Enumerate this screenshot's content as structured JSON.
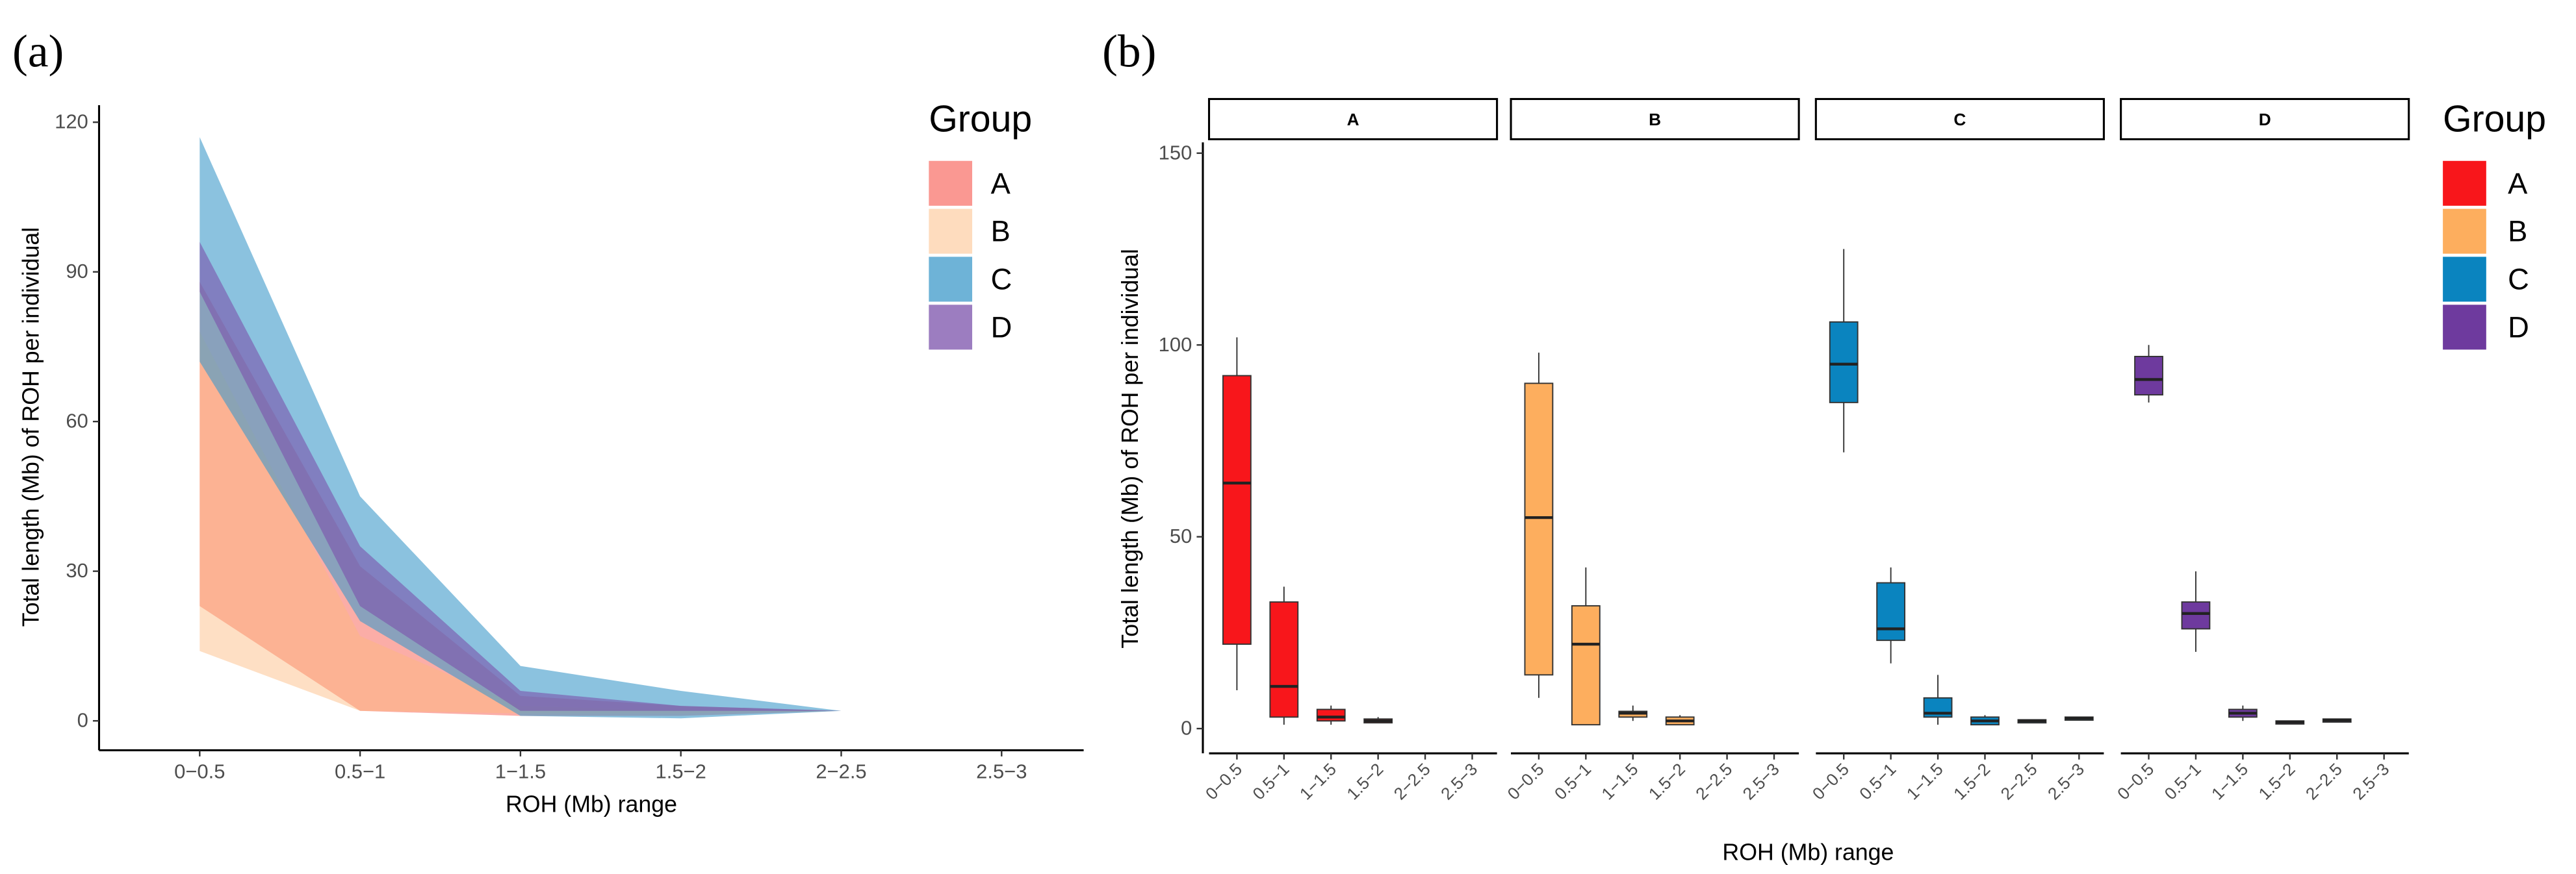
{
  "chart_data": [
    {
      "panel_label": "(a)",
      "type": "area",
      "xlabel": "ROH (Mb) range",
      "ylabel": "Total length (Mb) of ROH per individual",
      "categories": [
        "0−0.5",
        "0.5−1",
        "1−1.5",
        "1.5−2",
        "2−2.5",
        "2.5−3"
      ],
      "yticks": [
        "0",
        "30",
        "60",
        "90",
        "120"
      ],
      "ylim": [
        0,
        125
      ],
      "legend": {
        "title": "Group",
        "position": "right"
      },
      "series": [
        {
          "name": "A",
          "color": "#F8766D",
          "upper": [
            88,
            31,
            5,
            3,
            2,
            2
          ],
          "lower": [
            23,
            2,
            1,
            1,
            2,
            2
          ]
        },
        {
          "name": "B",
          "color": "#FDB97D",
          "upper": [
            78,
            17,
            3,
            2,
            2,
            2
          ],
          "lower": [
            14,
            2,
            1.5,
            1.5,
            2,
            2
          ]
        },
        {
          "name": "C",
          "color": "#3D9AC9",
          "upper": [
            117,
            45,
            11,
            6,
            2,
            2
          ],
          "lower": [
            72,
            20,
            1,
            0.5,
            2,
            2
          ]
        },
        {
          "name": "D",
          "color": "#7B52AB",
          "upper": [
            96,
            35,
            6,
            3,
            2,
            2
          ],
          "lower": [
            86,
            23,
            2,
            2,
            2,
            2
          ]
        }
      ]
    },
    {
      "panel_label": "(b)",
      "type": "box",
      "xlabel": "ROH (Mb) range",
      "ylabel": "Total length (Mb) of ROH per individual",
      "categories": [
        "0−0.5",
        "0.5−1",
        "1−1.5",
        "1.5−2",
        "2−2.5",
        "2.5−3"
      ],
      "yticks": [
        "0",
        "50",
        "100",
        "150"
      ],
      "ylim": [
        -5,
        155
      ],
      "legend": {
        "title": "Group",
        "position": "right"
      },
      "facets": [
        {
          "name": "A",
          "color": "#F8161B",
          "boxes": [
            [
              10,
              22,
              64,
              92,
              102
            ],
            [
              1,
              3,
              11,
              33,
              37
            ],
            [
              1,
              2,
              3,
              5,
              6
            ],
            [
              1.5,
              1.5,
              2,
              2.5,
              3
            ],
            null,
            null
          ]
        },
        {
          "name": "B",
          "color": "#FDAE5E",
          "boxes": [
            [
              8,
              14,
              55,
              90,
              98
            ],
            [
              1,
              1,
              22,
              32,
              42
            ],
            [
              2,
              3,
              4,
              4.5,
              6
            ],
            [
              1,
              1,
              2,
              3,
              3.5
            ],
            null,
            null
          ]
        },
        {
          "name": "C",
          "color": "#0A84BF",
          "boxes": [
            [
              72,
              85,
              95,
              106,
              125
            ],
            [
              17,
              23,
              26,
              38,
              42
            ],
            [
              1,
              3,
              4,
              8,
              14
            ],
            [
              1,
              1,
              2,
              3,
              3.5
            ],
            [
              2,
              2,
              2,
              2.3,
              2.3
            ],
            [
              2.5,
              2.5,
              2.7,
              3,
              3
            ]
          ]
        },
        {
          "name": "D",
          "color": "#6E3A9E",
          "boxes": [
            [
              85,
              87,
              91,
              97,
              100
            ],
            [
              20,
              26,
              30,
              33,
              41
            ],
            [
              2,
              3,
              4,
              5,
              6
            ],
            [
              1.5,
              1.5,
              1.7,
              2,
              2
            ],
            [
              2,
              2,
              2.2,
              2.5,
              2.5
            ],
            null
          ]
        }
      ]
    }
  ]
}
